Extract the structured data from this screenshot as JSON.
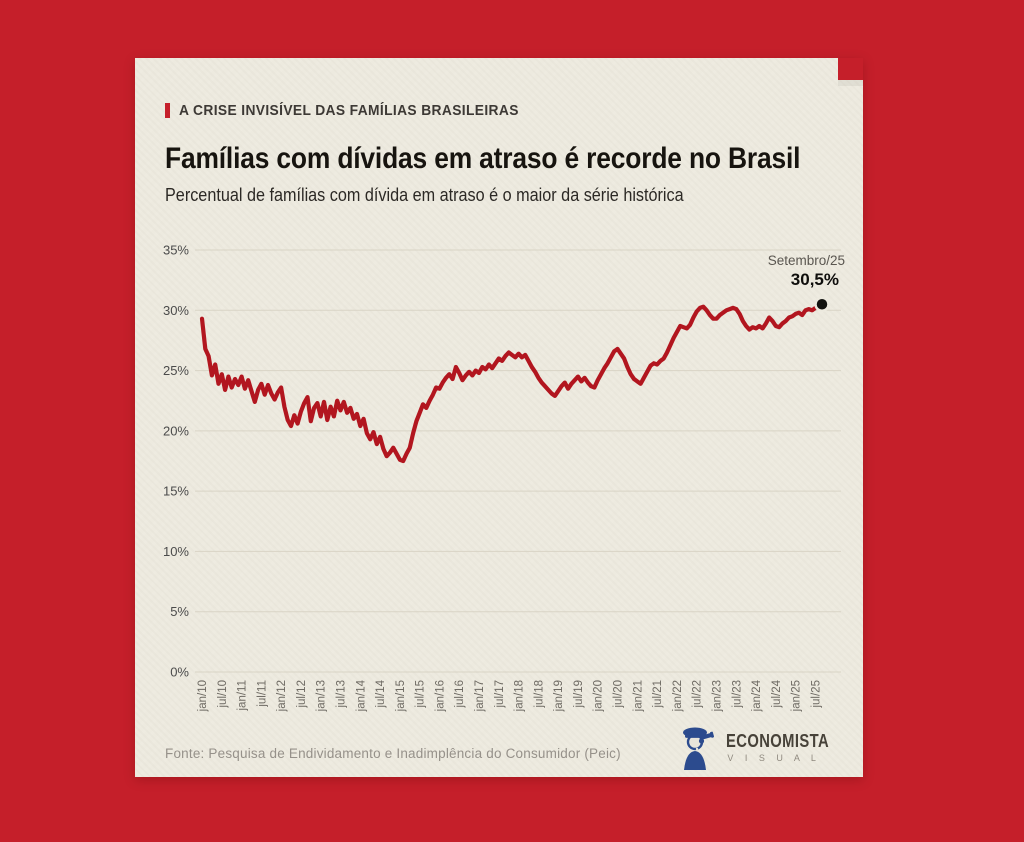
{
  "colors": {
    "background_red": "#c51f2a",
    "paper": "#edeadf",
    "line": "#b2161f",
    "dot": "#131310",
    "grid": "#d7d2c3",
    "axis_text": "#6e6a63",
    "y_axis_text": "#4b4b4b"
  },
  "header": {
    "eyebrow": "A CRISE INVISÍVEL DAS FAMÍLIAS BRASILEIRAS",
    "title": "Famílias com dívidas em atraso é recorde no Brasil",
    "subtitle": "Percentual de famílias com dívida em atraso é o maior da série histórica"
  },
  "chart_data": {
    "type": "line",
    "title": "Percentual de famílias com dívida em atraso",
    "unit": "%",
    "frequency": "monthly",
    "start": "jan/10",
    "end": "set/25",
    "ylim": [
      0,
      35
    ],
    "grid": true,
    "y_ticks": [
      "0%",
      "5%",
      "10%",
      "15%",
      "20%",
      "25%",
      "30%",
      "35%"
    ],
    "x_tick_labels": [
      "jan/10",
      "jul/10",
      "jan/11",
      "jul/11",
      "jan/12",
      "jul/12",
      "jan/13",
      "jul/13",
      "jan/14",
      "jul/14",
      "jan/15",
      "jul/15",
      "jan/16",
      "jul/16",
      "jan/17",
      "jul/17",
      "jan/18",
      "jul/18",
      "jan/19",
      "jul/19",
      "jan/20",
      "jul/20",
      "jan/21",
      "jul/21",
      "jan/22",
      "jul/22",
      "jan/23",
      "jul/23",
      "jan/24",
      "jul/24",
      "jan/25",
      "jul/25"
    ],
    "values": [
      29.3,
      26.8,
      26.2,
      24.6,
      25.5,
      23.9,
      24.7,
      23.4,
      24.5,
      23.6,
      24.3,
      23.8,
      24.5,
      23.5,
      24.2,
      23.3,
      22.4,
      23.4,
      23.9,
      23.0,
      23.8,
      23.1,
      22.6,
      23.2,
      23.6,
      22.0,
      20.9,
      20.4,
      21.3,
      20.6,
      21.6,
      22.3,
      22.8,
      20.8,
      21.9,
      22.3,
      21.2,
      22.4,
      20.9,
      22.0,
      21.2,
      22.5,
      21.7,
      22.4,
      21.5,
      21.9,
      21.0,
      21.4,
      20.4,
      21.0,
      19.8,
      19.3,
      19.9,
      18.9,
      19.5,
      18.5,
      17.9,
      18.2,
      18.6,
      18.1,
      17.6,
      17.5,
      18.1,
      18.6,
      19.8,
      20.8,
      21.5,
      22.2,
      21.9,
      22.5,
      23.0,
      23.6,
      23.5,
      24.0,
      24.4,
      24.7,
      24.3,
      25.3,
      24.8,
      24.2,
      24.6,
      24.9,
      24.6,
      25.0,
      24.8,
      25.3,
      25.1,
      25.5,
      25.2,
      25.6,
      26.0,
      25.8,
      26.2,
      26.5,
      26.3,
      26.1,
      26.4,
      26.1,
      26.3,
      25.8,
      25.3,
      24.9,
      24.4,
      24.0,
      23.7,
      23.4,
      23.1,
      22.9,
      23.3,
      23.7,
      24.0,
      23.5,
      23.9,
      24.2,
      24.5,
      24.1,
      24.4,
      24.0,
      23.7,
      23.6,
      24.2,
      24.7,
      25.2,
      25.6,
      26.1,
      26.6,
      26.8,
      26.4,
      26.0,
      25.3,
      24.7,
      24.3,
      24.1,
      23.9,
      24.4,
      24.9,
      25.4,
      25.6,
      25.5,
      25.8,
      26.0,
      26.5,
      27.1,
      27.7,
      28.2,
      28.7,
      28.6,
      28.5,
      28.8,
      29.4,
      29.9,
      30.2,
      30.3,
      30.0,
      29.6,
      29.3,
      29.3,
      29.6,
      29.8,
      30.0,
      30.1,
      30.2,
      30.1,
      29.7,
      29.1,
      28.7,
      28.4,
      28.6,
      28.5,
      28.7,
      28.5,
      28.9,
      29.4,
      29.1,
      28.7,
      28.6,
      28.9,
      29.1,
      29.4,
      29.5,
      29.7,
      29.8,
      29.6,
      30.0,
      30.1,
      30.0,
      30.2,
      30.4,
      30.5
    ],
    "annotation": {
      "label": "Setembro/25",
      "value_label": "30,5%",
      "value": 30.5
    },
    "legend": null
  },
  "footer": {
    "source": "Fonte:  Pesquisa de Endividamento e Inadimplência do Consumidor (Peic)",
    "logo_name": "ECONOMISTA",
    "logo_sub": "V I S U A L"
  }
}
